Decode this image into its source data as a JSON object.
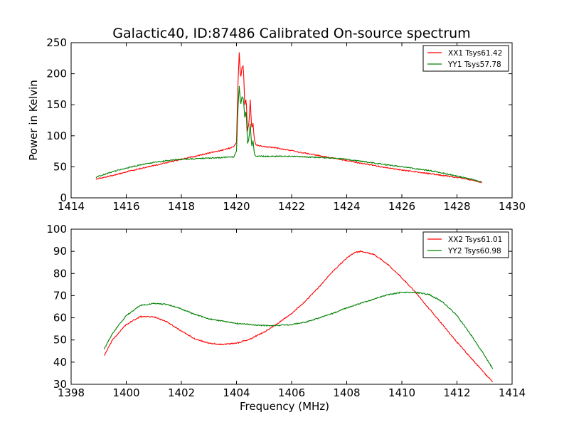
{
  "figure": {
    "title": "Galactic40, ID:87486 Calibrated On-source spectrum"
  },
  "chart_data": [
    {
      "type": "line",
      "title": "Galactic40, ID:87486 Calibrated On-source spectrum",
      "xlabel": "",
      "ylabel": "Power in Kelvin",
      "xlim": [
        1414,
        1430
      ],
      "ylim": [
        0,
        250
      ],
      "xticks": [
        "1414",
        "1416",
        "1418",
        "1420",
        "1422",
        "1424",
        "1426",
        "1428",
        "1430"
      ],
      "yticks": [
        "0",
        "50",
        "100",
        "150",
        "200",
        "250"
      ],
      "grid": false,
      "legend_position": "top-right",
      "series": [
        {
          "name": "XX1 Tsys61.42",
          "color": "#ff0000",
          "x": [
            1414.9,
            1415.5,
            1416.0,
            1416.5,
            1417.0,
            1417.5,
            1418.0,
            1418.5,
            1419.0,
            1419.5,
            1419.9,
            1420.0,
            1420.05,
            1420.1,
            1420.15,
            1420.2,
            1420.25,
            1420.3,
            1420.35,
            1420.4,
            1420.45,
            1420.5,
            1420.55,
            1420.6,
            1420.65,
            1420.7,
            1420.8,
            1421.0,
            1421.5,
            1422.0,
            1422.5,
            1423.0,
            1423.5,
            1424.0,
            1424.5,
            1425.0,
            1425.5,
            1426.0,
            1426.5,
            1427.0,
            1427.5,
            1428.0,
            1428.5,
            1428.9
          ],
          "values": [
            30,
            36,
            42,
            47,
            52,
            57,
            62,
            67,
            72,
            77,
            82,
            90,
            180,
            234,
            192,
            210,
            213,
            150,
            160,
            108,
            120,
            158,
            112,
            120,
            93,
            86,
            84,
            83,
            80,
            76,
            72,
            68,
            64,
            60,
            56,
            52,
            48,
            45,
            42,
            39,
            36,
            33,
            29,
            25
          ]
        },
        {
          "name": "YY1 Tsys57.78",
          "color": "#008000",
          "x": [
            1414.9,
            1415.5,
            1416.0,
            1416.5,
            1417.0,
            1417.5,
            1418.0,
            1418.5,
            1419.0,
            1419.5,
            1419.9,
            1420.0,
            1420.05,
            1420.1,
            1420.15,
            1420.2,
            1420.25,
            1420.3,
            1420.35,
            1420.4,
            1420.45,
            1420.5,
            1420.55,
            1420.6,
            1420.65,
            1420.7,
            1420.8,
            1421.0,
            1421.5,
            1422.0,
            1422.5,
            1423.0,
            1423.5,
            1424.0,
            1424.5,
            1425.0,
            1425.5,
            1426.0,
            1426.5,
            1427.0,
            1427.5,
            1428.0,
            1428.5,
            1428.9
          ],
          "values": [
            33,
            42,
            48,
            53,
            57,
            60,
            62,
            63,
            64,
            65,
            66,
            75,
            140,
            180,
            150,
            162,
            160,
            130,
            140,
            88,
            95,
            120,
            82,
            92,
            70,
            67,
            67,
            67,
            67,
            67,
            66,
            65,
            64,
            62,
            59,
            56,
            53,
            50,
            47,
            44,
            40,
            35,
            30,
            25
          ]
        }
      ]
    },
    {
      "type": "line",
      "title": "",
      "xlabel": "Frequency (MHz)",
      "ylabel": "",
      "xlim": [
        1398,
        1414
      ],
      "ylim": [
        30,
        100
      ],
      "xticks": [
        "1398",
        "1400",
        "1402",
        "1404",
        "1406",
        "1408",
        "1410",
        "1412",
        "1414"
      ],
      "yticks": [
        "30",
        "40",
        "50",
        "60",
        "70",
        "80",
        "90",
        "100"
      ],
      "grid": false,
      "legend_position": "top-right",
      "series": [
        {
          "name": "XX2 Tsys61.01",
          "color": "#ff0000",
          "x": [
            1399.2,
            1399.5,
            1400.0,
            1400.5,
            1401.0,
            1401.5,
            1402.0,
            1402.5,
            1403.0,
            1403.5,
            1404.0,
            1404.5,
            1405.0,
            1405.5,
            1406.0,
            1406.5,
            1407.0,
            1407.5,
            1408.0,
            1408.3,
            1408.5,
            1409.0,
            1409.5,
            1410.0,
            1410.5,
            1411.0,
            1411.5,
            1412.0,
            1412.5,
            1413.0,
            1413.3
          ],
          "values": [
            43,
            50,
            57,
            60.5,
            60.5,
            58,
            54,
            50.5,
            48.5,
            48,
            48.5,
            50.5,
            53.5,
            57.5,
            62,
            67.5,
            74,
            81,
            87,
            89.5,
            90,
            88.5,
            84,
            78,
            71.5,
            64,
            56.5,
            49,
            42,
            35,
            31
          ]
        },
        {
          "name": "YY2 Tsys60.98",
          "color": "#008000",
          "x": [
            1399.2,
            1399.5,
            1400.0,
            1400.5,
            1401.0,
            1401.5,
            1402.0,
            1402.5,
            1403.0,
            1403.5,
            1404.0,
            1404.5,
            1405.0,
            1405.5,
            1406.0,
            1406.5,
            1407.0,
            1407.5,
            1408.0,
            1408.5,
            1409.0,
            1409.5,
            1410.0,
            1410.5,
            1411.0,
            1411.5,
            1412.0,
            1412.5,
            1413.0,
            1413.3
          ],
          "values": [
            46,
            53,
            61,
            65.5,
            66.5,
            66,
            64,
            61.5,
            59.5,
            58.5,
            57.5,
            57,
            56.5,
            56.5,
            57,
            58,
            60,
            62,
            64.5,
            66.5,
            68.5,
            70.5,
            71.5,
            71.5,
            70.5,
            67,
            61,
            52.5,
            43,
            37
          ]
        }
      ]
    }
  ]
}
